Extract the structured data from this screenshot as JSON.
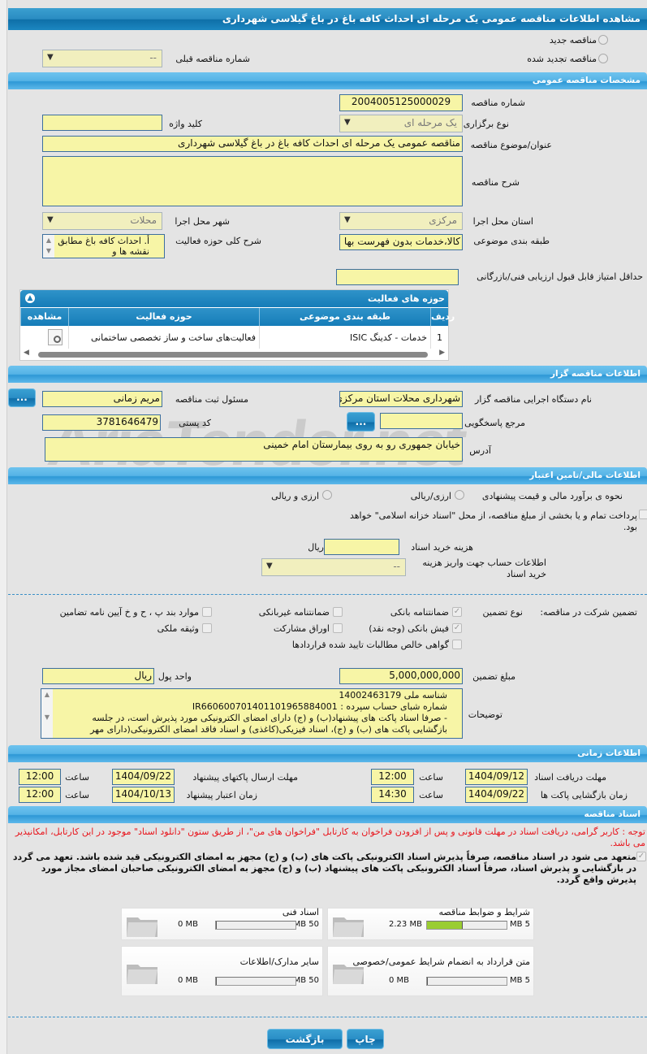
{
  "title": "مشاهده اطلاعات مناقصه عمومی یک مرحله ای احداث کافه باغ در باغ گیلاسی شهرداری",
  "watermark": "AriaTender.net",
  "tender_type": {
    "new": "مناقصه جدید",
    "renewed": "مناقصه تجدید شده",
    "prev_label": "شماره مناقصه قبلی",
    "prev_value": "--"
  },
  "general": {
    "header": "مشخصات مناقصه عمومی",
    "number_label": "شماره مناقصه",
    "number": "2004005125000029",
    "holding_label": "نوع برگزاری",
    "holding": "یک مرحله ای",
    "keyword_label": "کلید واژه",
    "keyword": "",
    "subject_label": "عنوان/موضوع مناقصه",
    "subject": "مناقصه عمومی یک مرحله ای  احداث کافه باغ در باغ گیلاسی شهرداری",
    "desc_label": "شرح مناقصه",
    "desc": "",
    "province_label": "استان محل اجرا",
    "province": "مرکزی",
    "city_label": "شهر محل اجرا",
    "city": "محلات",
    "category_label": "طبقه بندی موضوعی",
    "category": "کالا،خدمات بدون فهرست بها",
    "scope_label": "شرح کلی حوزه فعالیت",
    "scope": "أ.      احداث کافه باغ مطابق با نقشه ها و",
    "min_score_label": "حداقل امتیاز قابل قبول ارزیابی فنی/بازرگانی",
    "min_score": ""
  },
  "activity": {
    "title": "حوزه های فعالیت",
    "cols": [
      "ردیف",
      "طبقه بندی موضوعی",
      "حوزه فعالیت",
      "مشاهده"
    ],
    "rows": [
      [
        "1",
        "خدمات - کدینگ ISIC",
        "فعالیت‌های ساخت و ساز تخصصی ساختمانی"
      ]
    ]
  },
  "org": {
    "header": "اطلاعات مناقصه گزار",
    "name_label": "نام دستگاه اجرایی مناقصه گزار",
    "name": "شهرداری محلات استان مرکزی",
    "resp_label": "مسئول ثبت مناقصه",
    "resp": "مریم زمانی",
    "ref_label": "مرجع پاسخگویی",
    "ref": "",
    "postal_label": "کد پستی",
    "postal": "3781646479",
    "address_label": "آدرس",
    "address": "خیابان جمهوری رو به روی بیمارستان امام خمینی",
    "more": "..."
  },
  "finance": {
    "header": "اطلاعات مالی/تامین اعتبار",
    "method_label": "نحوه ی برآورد مالی و قیمت پیشنهادی",
    "opt1": "ارزی/ریالی",
    "opt2": "ارزی و ریالی",
    "treasury": "پرداخت تمام و یا بخشی از مبلغ مناقصه، از محل \"اسناد خزانه اسلامی\" خواهد بود.",
    "doc_fee_label": "هزینه خرید اسناد",
    "doc_fee": "",
    "rial": "ریال",
    "account_label": "اطلاعات حساب جهت واریز هزینه خرید اسناد",
    "account": "--"
  },
  "guarantee": {
    "label": "تضمین شرکت در مناقصه:",
    "type_label": "نوع تضمین",
    "options": [
      {
        "label": "ضمانتنامه بانکی",
        "checked": true
      },
      {
        "label": "ضمانتنامه غیربانکی",
        "checked": false
      },
      {
        "label": "موارد بند پ ، ح و خ آیین نامه تضامین",
        "checked": false
      },
      {
        "label": "فیش بانکی (وجه نقد)",
        "checked": true
      },
      {
        "label": "اوراق مشارکت",
        "checked": false
      },
      {
        "label": "وثیقه ملکی",
        "checked": false
      },
      {
        "label": "گواهی خالص مطالبات تایید شده قراردادها",
        "checked": false
      }
    ],
    "amount_label": "مبلغ تضمین",
    "amount": "5,000,000,000",
    "currency_label": "واحد پول",
    "currency": "ریال",
    "notes_label": "توضیحات",
    "notes": [
      "شناسه ملی 14002463179",
      "شماره شبای حساب سپرده : IR660600701401101965884001",
      "- صرفا اسناد پاکت های پیشنهاد(ب) و (ج) دارای امضای الکترونیکی مورد پذیرش است، در جلسه",
      "بازگشایی پاکت های (ب) و (ج)، اسناد فیزیکی(کاغذی) و اسناد فاقد امضای الکترونیکی(دارای مهر"
    ]
  },
  "timing": {
    "header": "اطلاعات زمانی",
    "hour": "ساعت",
    "doc_deadline_label": "مهلت دریافت اسناد",
    "doc_deadline": "1404/09/12",
    "doc_deadline_time": "12:00",
    "send_label": "مهلت ارسال پاکتهای پیشنهاد",
    "send": "1404/09/22",
    "send_time": "12:00",
    "open_label": "زمان بازگشایی پاکت ها",
    "open": "1404/09/22",
    "open_time": "14:30",
    "valid_label": "زمان اعتبار پیشنهاد",
    "valid": "1404/10/13",
    "valid_time": "12:00"
  },
  "docs": {
    "header": "اسناد مناقصه",
    "note": "توجه : کاربر گرامی، دریافت اسناد در مهلت قانونی و پس از افزودن فراخوان به کارتابل \"فراخوان های من\"، از طریق ستون \"دانلود اسناد\" موجود در این کارتابل، امکانپذیر می باشد.",
    "commit": "متعهد می شود در اسناد مناقصه، صرفاً پذیرش اسناد الکترونیکی پاکت های (ب) و (ج) مجهز به امضای الکترونیکی قید شده باشد. تعهد می گردد در بازگشایی و پذیرش اسناد، صرفاً اسناد الکترونیکی پاکت های پیشنهاد (ب) و (ج) مجهز به امضای الکترونیکی صاحبان امضای مجاز مورد پذیرش واقع گردد.",
    "cards": [
      {
        "title": "شرایط و ضوابط مناقصه",
        "used": "2.23 MB",
        "max": "5 MB",
        "fill": 0.446
      },
      {
        "title": "اسناد فنی",
        "used": "0 MB",
        "max": "50 MB",
        "fill": 0
      },
      {
        "title": "متن قرارداد به انضمام شرایط عمومی/خصوصی",
        "used": "0 MB",
        "max": "5 MB",
        "fill": 0
      },
      {
        "title": "سایر مدارک/اطلاعات",
        "used": "0 MB",
        "max": "50 MB",
        "fill": 0
      }
    ],
    "bar_color": "#9acd32"
  },
  "buttons": {
    "print": "چاپ",
    "back": "بازگشت"
  }
}
